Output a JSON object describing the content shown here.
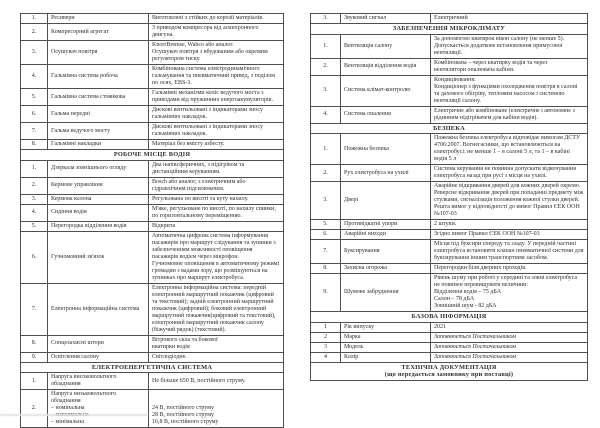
{
  "colors": {
    "page": "#ffffff",
    "border": "#4f4f4f",
    "text": "#2e2e2e"
  },
  "document": {
    "left_table": {
      "sections": [
        {
          "header": null,
          "rows": [
            {
              "num": "1.",
              "name": "Ресивери",
              "value": "Виготовлені з стійких до корозії матеріалів."
            },
            {
              "num": "2.",
              "name": "Компресорний агрегат",
              "value": "З приводом компресора від асинхронного  двигуна."
            },
            {
              "num": "3.",
              "name": "Осушувач повітря",
              "value_lines": [
                "KnorrBremse, Wabco або аналог.",
                "Осушувач повітря з вбудованим або окремим регулятором тиску."
              ]
            },
            {
              "num": "4.",
              "name": "Гальмівна система робоча",
              "value": "Комбінована система електродинамічного гальмування та пневматичний привід, з поділом по осях, EBS-3."
            },
            {
              "num": "5.",
              "name": "Гальмівна система стоянкова",
              "value": "Гальмівні механізми коліс ведучого моста з приводами від пружинних енергоакумуляторів."
            },
            {
              "num": "6.",
              "name": "Гальма передні",
              "value": "Дискові вентильовані з індикаторами зносу гальмівних накладок."
            },
            {
              "num": "7.",
              "name": "Гальма ведучого мосту",
              "value": "Дискові вентильовані з індикаторами зносу гальмівних накладок."
            },
            {
              "num": "8.",
              "name": "Гальмівні накладки",
              "value": "Матеріал без вмісту азбесту."
            }
          ]
        },
        {
          "header": [
            "РОБОЧЕ МІСЦЕ ВОДІЯ"
          ],
          "rows": [
            {
              "num": "1.",
              "name": "Дзеркала зовнішнього огляду",
              "value": "Два напівсферичних, з підігрівом та дистанційним керуванням."
            },
            {
              "num": "2.",
              "name": "Кермове управління",
              "value": "Bosch або аналог, з  електричним або гідравлічним підсилювачем."
            },
            {
              "num": "3.",
              "name": "Кермова колона",
              "value": "Регульована по висоті та куту нахилу."
            },
            {
              "num": "4.",
              "name": "Сидіння водія",
              "value": "М'яке, регульоване по  висоті, по нахилу спинки, по горизонтальному переміщенню."
            },
            {
              "num": "5.",
              "name": "Перегородка  відділення водія",
              "value": "Відкрита"
            },
            {
              "num": "6.",
              "name": "Гучномовний зв'язок",
              "value_lines": [
                "Автоматична цифрова система інформування пасажирів про маршрут слідування та зупинки з забезпеченням можливості оповіщення пасажирів водієм через мікрофон.",
                " Гучномовне оповіщення в автоматичному режимі громадян з вадами зору, що розміщуються на зупинках про маршрут електробуса."
              ]
            },
            {
              "num": "7.",
              "name": "Електронна інформаційна система",
              "value": "Електронна інформаційна система: передній електронний маршрутний покажчик (цифровий та текстовий); задній електронний маршрутний покажчик (цифровий); боковий електронний маршрутний покажчик(цифровий та текстовий), електронний маршрутний покажчик салону (біжучий рядок) (текстовий)."
            },
            {
              "num": "8.",
              "name": "Сонцезахисні штори",
              "value_lines": [
                "Вітрового скла та бокової",
                "кватирки водія"
              ]
            },
            {
              "num": "9.",
              "name": "Освітлення салону",
              "value": "Світлодіодне."
            }
          ]
        },
        {
          "header": [
            "ЕЛЕКТРОЕНЕРГЕТИЧНА СИСТЕМА"
          ],
          "rows": [
            {
              "num": "1.",
              "name_lines": [
                "Напруга високовольтного",
                "обладнання"
              ],
              "value": "Не більше 650 В, постійного струму."
            },
            {
              "num": "2.",
              "name_lines": [
                "Напруга низьковольтного",
                "обладнання",
                "– номінальна",
                "– максимальна",
                "– мінімальна"
              ],
              "value_lines": [
                "",
                "",
                "24 В, постійного струму",
                "28  В, постійного струму",
                "16,8 В, постійного струму"
              ]
            }
          ]
        }
      ]
    },
    "right_table": {
      "sections": [
        {
          "header": null,
          "rows": [
            {
              "num": "3.",
              "name": "Звуковий сигнал",
              "value": "Електричний"
            }
          ]
        },
        {
          "header": [
            "ЗАБЕЗПЕЧЕННЯ МІКРОКЛІМАТУ"
          ],
          "rows": [
            {
              "num": "1.",
              "name": "Вентиляція салону",
              "value_lines": [
                "За допомогою кватирок вікон салону (не менше 5).",
                "Допускається додаткове встановлення примусової",
                "вентиляції."
              ]
            },
            {
              "num": "2.",
              "name": "Вентиляція відділення водія",
              "value_lines": [
                "Комбінована – через кватирку водія та через",
                "вентилятори опалювача кабіни."
              ]
            },
            {
              "num": "3.",
              "name": "Система клімат-контролю",
              "value_lines": [
                "Кондиціювання:",
                "Кондиціонер з функціями охолодження повітря в салоні та дахового обігріву, тепловим насосом і системою вентиляції салону."
              ]
            },
            {
              "num": "4.",
              "name": "Система опалення",
              "value": "Електричне або комбіноване (електричне і автономне з рідинним підігрівачем для кабіни водія)."
            }
          ]
        },
        {
          "header": [
            "БЕЗПЕКА"
          ],
          "rows": [
            {
              "num": "1.",
              "name": "Пожежна безпека",
              "value": "Пожежна безпека електробуса відповідає вимогам ДСТУ 4706:2007. Вогнегасники, що встановлюються на електробусі: не менше 1  – в салоні 5 л, та 1  – в кабіні водія 5 л"
            },
            {
              "num": "2.",
              "name": "Рух електробуса на ухилі",
              "value": "Система керування не повинна допускати відкочування електробуса назад при русі з місця на ухилі."
            },
            {
              "num": "3.",
              "name": "Двері",
              "value_lines": [
                "Аварійне відкривання дверей для кожних дверей окремо.",
                "Реверсне відкривання дверей при попаданні предмету між стулками, сигналізація положення кожної стулки дверей.",
                "Решта вимог у відповідності  до вимог Правил ЄЕК ООН №107-03"
              ]
            },
            {
              "num": "5.",
              "name": "Противідкатні упори",
              "value": "2 штуки."
            },
            {
              "num": "6.",
              "name": "Аварійні виходи",
              "value": "Згідно вимог Правил ЄЕК ООН №107-03"
            },
            {
              "num": "7.",
              "name": "Буксирування",
              "value": "Місця під буксири спереду та ззаду. У передній частині електробуса встановити клапан пневматичної системи для буксирування іншим транспортним засобом."
            },
            {
              "num": "8.",
              "name": "Захисна огорожа",
              "value": "Перегородки біля дверних проходів."
            },
            {
              "num": "9.",
              "name": "Шумове забруднення",
              "value_lines": [
                "Рівень шуму при роботі у середині та зовні електробуса не повинен перевищувати величини:",
                "Відділення водія – 75 дБА",
                "Салон – 78 дБА",
                "Зовнішній шум - 82 дБА"
              ]
            }
          ]
        },
        {
          "header": [
            "БАЗОВА ІНФОРМАЦІЯ"
          ],
          "rows": [
            {
              "num": "1",
              "name": "Рік випуску",
              "value": "2021"
            },
            {
              "num": "2",
              "name": "Марка",
              "value": "Заповнюється Постачальником",
              "value_italic": true
            },
            {
              "num": "3",
              "name": "Модель",
              "value": "Заповнюється Постачальником",
              "value_italic": true
            },
            {
              "num": "4",
              "name": "Колір",
              "value": "Заповнюється Постачальником",
              "value_italic": true
            }
          ]
        },
        {
          "header": [
            "ТЕХНІЧНА ДОКУМЕНТАЦІЯ",
            "(що передається замовнику при поставці)"
          ],
          "rows": []
        }
      ]
    }
  }
}
